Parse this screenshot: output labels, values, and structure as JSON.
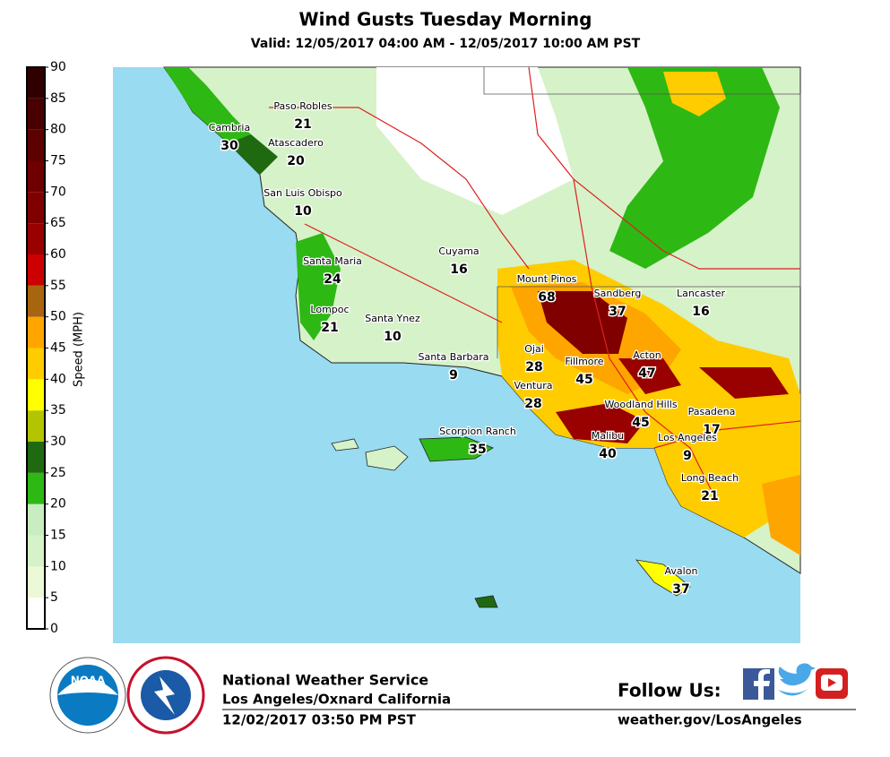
{
  "title": "Wind Gusts Tuesday Morning",
  "subtitle": "Valid: 12/05/2017 04:00 AM - 12/05/2017 10:00 AM PST",
  "colorbar": {
    "label": "Speed (MPH)",
    "ticks": [
      0,
      5,
      10,
      15,
      20,
      25,
      30,
      35,
      40,
      45,
      50,
      55,
      60,
      65,
      70,
      75,
      80,
      85,
      90
    ],
    "colors": [
      "#ffffff",
      "#ecf9d6",
      "#d6f2c8",
      "#c8edc0",
      "#2db814",
      "#1f6a10",
      "#b3c400",
      "#ffff00",
      "#ffcc00",
      "#ffa500",
      "#a8650f",
      "#cc0000",
      "#990000",
      "#800000",
      "#6e0000",
      "#5c0000",
      "#480000",
      "#300000"
    ]
  },
  "stations": [
    {
      "name": "Paso Robles",
      "value": 21
    },
    {
      "name": "Cambria",
      "value": 30
    },
    {
      "name": "Atascadero",
      "value": 20
    },
    {
      "name": "San Luis Obispo",
      "value": 10
    },
    {
      "name": "Cuyama",
      "value": 16
    },
    {
      "name": "Santa Maria",
      "value": 24
    },
    {
      "name": "Mount Pinos",
      "value": 68
    },
    {
      "name": "Sandberg",
      "value": 37
    },
    {
      "name": "Lancaster",
      "value": 16
    },
    {
      "name": "Lompoc",
      "value": 21
    },
    {
      "name": "Santa Ynez",
      "value": 10
    },
    {
      "name": "Ojai",
      "value": 28
    },
    {
      "name": "Acton",
      "value": 47
    },
    {
      "name": "Fillmore",
      "value": 45
    },
    {
      "name": "Santa Barbara",
      "value": 9
    },
    {
      "name": "Ventura",
      "value": 28
    },
    {
      "name": "Woodland Hills",
      "value": 45
    },
    {
      "name": "Pasadena",
      "value": 17
    },
    {
      "name": "Scorpion Ranch",
      "value": 35
    },
    {
      "name": "Malibu",
      "value": 40
    },
    {
      "name": "Los Angeles",
      "value": 9
    },
    {
      "name": "Long Beach",
      "value": 21
    },
    {
      "name": "Avalon",
      "value": 37
    }
  ],
  "footer": {
    "office": "National Weather Service",
    "location": "Los Angeles/Oxnard California",
    "issued": "12/02/2017 03:50 PM PST",
    "follow": "Follow Us:",
    "url": "weather.gov/LosAngeles",
    "noaa_logo": "NOAA"
  }
}
